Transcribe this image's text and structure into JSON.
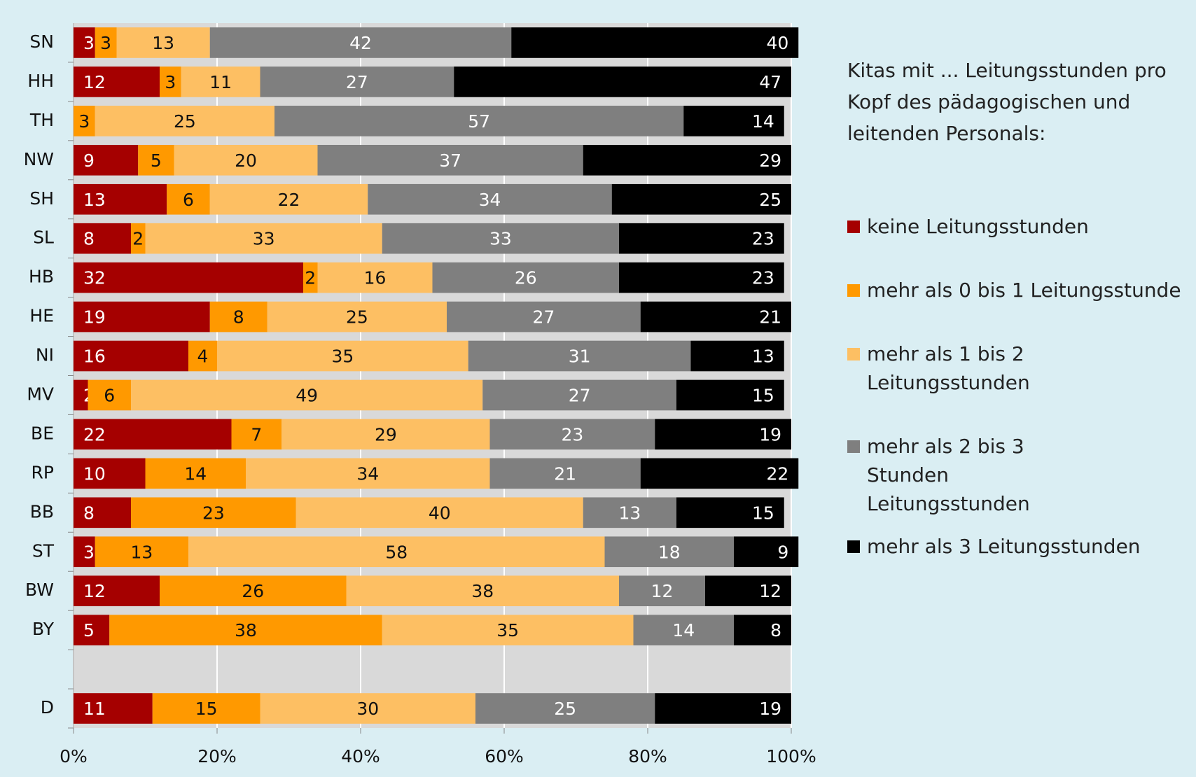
{
  "chart_data": {
    "type": "stacked-bar-horizontal",
    "legend_title": "Kitas mit ... Leitungsstunden pro Kopf des pädagogischen und leitenden Personals:",
    "categories": [
      "SN",
      "HH",
      "TH",
      "NW",
      "SH",
      "SL",
      "HB",
      "HE",
      "NI",
      "MV",
      "BE",
      "RP",
      "BB",
      "ST",
      "BW",
      "BY",
      null,
      "D"
    ],
    "series": [
      {
        "name": "keine Leitungsstunden",
        "color": "#a50000",
        "values": [
          3,
          12,
          0,
          9,
          13,
          8,
          32,
          19,
          16,
          2,
          22,
          10,
          8,
          3,
          12,
          5,
          null,
          11
        ]
      },
      {
        "name": "mehr als 0 bis 1 Leitungsstunde",
        "color": "#ff9900",
        "values": [
          3,
          3,
          3,
          5,
          6,
          2,
          2,
          8,
          4,
          6,
          7,
          14,
          23,
          13,
          26,
          38,
          null,
          15
        ]
      },
      {
        "name": "mehr als 1 bis 2 Leitungsstunden",
        "color": "#fdbf63",
        "values": [
          13,
          11,
          25,
          20,
          22,
          33,
          16,
          25,
          35,
          49,
          29,
          34,
          40,
          58,
          38,
          35,
          null,
          30
        ]
      },
      {
        "name": "mehr als 2 bis 3 Stunden Leitungsstunden",
        "color": "#7f7f7f",
        "values": [
          42,
          27,
          57,
          37,
          34,
          33,
          26,
          27,
          31,
          27,
          23,
          21,
          13,
          18,
          12,
          14,
          null,
          25
        ]
      },
      {
        "name": "mehr als 3 Leitungsstunden",
        "color": "#000000",
        "values": [
          40,
          47,
          14,
          29,
          25,
          23,
          23,
          21,
          13,
          15,
          19,
          22,
          15,
          9,
          12,
          8,
          null,
          19
        ]
      }
    ],
    "xlim": [
      0,
      100
    ],
    "xticks": [
      {
        "value": 0,
        "label": "0%"
      },
      {
        "value": 20,
        "label": "20%"
      },
      {
        "value": 40,
        "label": "40%"
      },
      {
        "value": 60,
        "label": "60%"
      },
      {
        "value": 80,
        "label": "80%"
      },
      {
        "value": 100,
        "label": "100%"
      }
    ],
    "grid": true,
    "legend": "right"
  }
}
